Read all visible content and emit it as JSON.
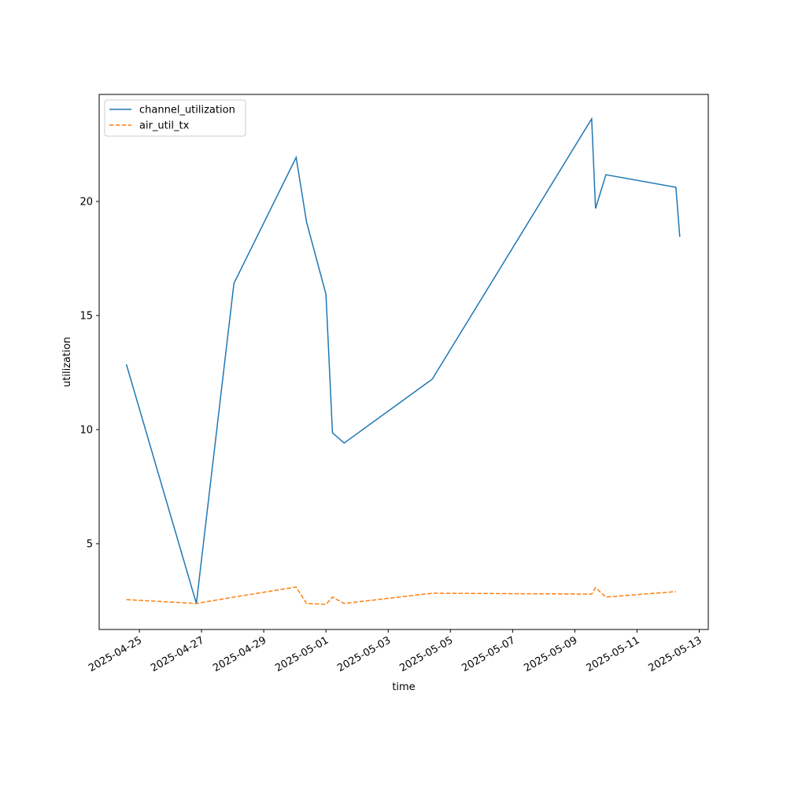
{
  "chart_data": {
    "type": "line",
    "x_label": "time",
    "y_label": "utilization",
    "x": [
      "2025-04-24T14:00",
      "2025-04-26T20:00",
      "2025-04-28T01:00",
      "2025-04-30T01:00",
      "2025-04-30T09:00",
      "2025-05-01T00:00",
      "2025-05-01T05:00",
      "2025-05-01T14:00",
      "2025-05-04T10:00",
      "2025-05-09T13:00",
      "2025-05-09T16:00",
      "2025-05-10T00:00",
      "2025-05-12T06:00",
      "2025-05-12T09:00"
    ],
    "series": [
      {
        "name": "channel_utilization",
        "color": "#1f77b4",
        "dashed": false,
        "values": [
          12.86,
          2.38,
          16.41,
          21.93,
          19.1,
          15.93,
          9.86,
          9.41,
          12.21,
          23.62,
          19.69,
          21.17,
          20.62,
          18.45
        ]
      },
      {
        "name": "air_util_tx",
        "color": "#ff7f0e",
        "dashed": true,
        "values": [
          2.55,
          2.38,
          2.66,
          3.1,
          2.38,
          2.34,
          2.66,
          2.38,
          2.83,
          2.79,
          3.07,
          2.66,
          2.9,
          null
        ]
      }
    ],
    "xlim": [
      "2025-04-23T17:00",
      "2025-05-13T07:00"
    ],
    "xticks": [
      "2025-04-25",
      "2025-04-27",
      "2025-04-29",
      "2025-05-01",
      "2025-05-03",
      "2025-05-05",
      "2025-05-07",
      "2025-05-09",
      "2025-05-11",
      "2025-05-13"
    ],
    "ylim": [
      1.24,
      24.69
    ],
    "yticks": [
      5,
      10,
      15,
      20
    ],
    "legend": "upper left"
  }
}
